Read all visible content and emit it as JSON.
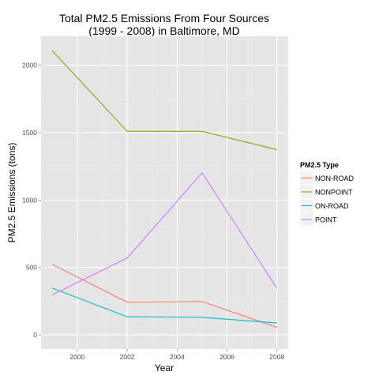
{
  "chart_data": {
    "type": "line",
    "title_lines": [
      "Total PM2.5 Emissions From Four Sources",
      "(1999 - 2008) in Baltimore, MD"
    ],
    "xlabel": "Year",
    "ylabel": "PM2.5 Emissions (tons)",
    "x": [
      1999,
      2002,
      2005,
      2008
    ],
    "xlim": [
      1998.55,
      2008.45
    ],
    "ylim": [
      -105,
      2215
    ],
    "xticks": [
      2000,
      2002,
      2004,
      2006,
      2008
    ],
    "yticks": [
      0,
      500,
      1000,
      1500,
      2000
    ],
    "grid": true,
    "legend_title": "PM2.5 Type",
    "legend_position": "right",
    "series": [
      {
        "name": "NON-ROAD",
        "color": "#f8766d",
        "values": [
          523,
          242,
          248,
          55
        ]
      },
      {
        "name": "NONPOINT",
        "color": "#7cae00",
        "values": [
          2108,
          1510,
          1510,
          1374
        ]
      },
      {
        "name": "ON-ROAD",
        "color": "#00bfc4",
        "values": [
          347,
          134,
          130,
          88
        ]
      },
      {
        "name": "POINT",
        "color": "#c77cff",
        "values": [
          297,
          570,
          1203,
          345
        ]
      }
    ]
  }
}
